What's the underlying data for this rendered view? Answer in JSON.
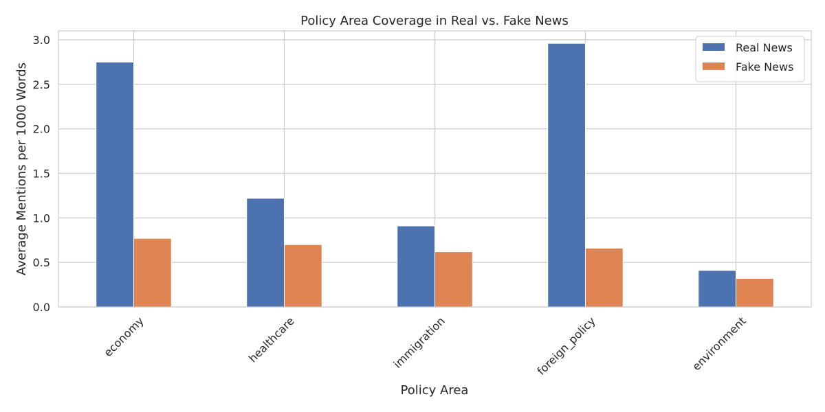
{
  "chart_data": {
    "type": "bar",
    "title": "Policy Area Coverage in Real vs. Fake News",
    "xlabel": "Policy Area",
    "ylabel": "Average Mentions per 1000 Words",
    "categories": [
      "economy",
      "healthcare",
      "immigration",
      "foreign_policy",
      "environment"
    ],
    "series": [
      {
        "name": "Real News",
        "color": "#4c72b0",
        "values": [
          2.75,
          1.22,
          0.91,
          2.96,
          0.41
        ]
      },
      {
        "name": "Fake News",
        "color": "#dd8452",
        "values": [
          0.77,
          0.7,
          0.62,
          0.66,
          0.32
        ]
      }
    ],
    "ylim": [
      0,
      3.1
    ],
    "yticks": [
      "0.0",
      "0.5",
      "1.0",
      "1.5",
      "2.0",
      "2.5",
      "3.0"
    ],
    "grid": true,
    "legend_position": "top-right"
  }
}
